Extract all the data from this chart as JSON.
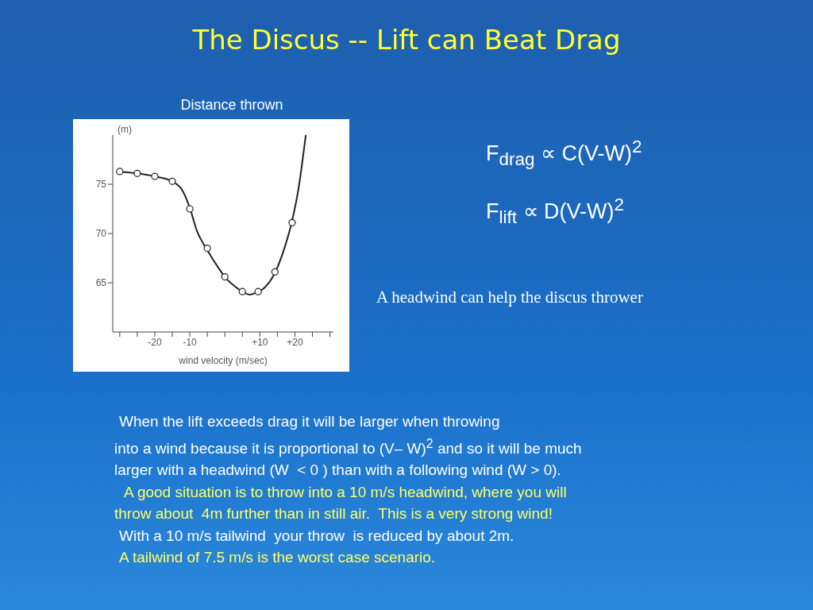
{
  "chart_data": {
    "type": "line",
    "title": "The Discus -- Lift can Beat Drag",
    "subtitle": "Distance thrown",
    "xlabel": "wind velocity (m/sec)",
    "ylabel": "(m)",
    "series": [
      {
        "color": "#222222",
        "marker": "none",
        "x": [
          -30,
          -25,
          -20,
          -15,
          -12,
          -10,
          -8,
          -5,
          -2,
          0,
          3,
          5,
          7,
          9,
          11,
          14,
          17,
          19,
          21,
          23.1
        ],
        "values": [
          76.3,
          76.1,
          75.8,
          75.3,
          74.3,
          72.6,
          70.3,
          68.3,
          66.6,
          65.6,
          64.6,
          64.1,
          63.8,
          64.0,
          64.4,
          65.8,
          68.5,
          71.0,
          74.5,
          80
        ]
      },
      {
        "type": "scatter",
        "color": "#222222",
        "marker": "circle",
        "x": [
          -30,
          -25,
          -20,
          -15,
          -10,
          -5,
          0,
          5,
          9.5,
          14.3,
          19.2
        ],
        "values": [
          76.3,
          76.1,
          75.8,
          75.3,
          72.5,
          68.5,
          65.6,
          64.1,
          64.1,
          66.1,
          71.1
        ]
      }
    ],
    "xlim": [
      -32,
      31
    ],
    "xticks": [
      {
        "value": -30,
        "label": null
      },
      {
        "value": -25,
        "label": null
      },
      -20,
      {
        "value": -15,
        "label": null
      },
      -10,
      {
        "value": -5,
        "label": null
      },
      {
        "value": 0,
        "label": null
      },
      {
        "value": 5,
        "label": null
      },
      {
        "value": 10,
        "label": "+10"
      },
      {
        "value": 15,
        "label": null
      },
      {
        "value": 20,
        "label": "+20"
      },
      {
        "value": 25,
        "label": null
      },
      {
        "value": 30,
        "label": null
      }
    ],
    "ylim": [
      60,
      80
    ],
    "yticks": [
      65,
      70,
      75
    ],
    "grid": false,
    "annotations": [
      "F$_{drag}$ ∝ C(V-W)$^{2}$",
      "F$_{lift}$ ∝ D(V-W)$^{2}$",
      "A headwind can help the discus thrower",
      "When the lift exceeds drag it will be larger when throwing",
      "into a wind because it is proportional to (V– W)$^{2}$ and so it will be much",
      "larger with a headwind (W  < 0 ) than with a following wind (W > 0).",
      "A good situation is to throw into a 10 m/s headwind, where you will",
      "throw about  4m further than in still air.  This is a very strong wind!",
      "With a 10 m/s tailwind  your throw  is reduced by about 2m.",
      "A tailwind of 7.5 m/s is the worst case scenario."
    ]
  }
}
